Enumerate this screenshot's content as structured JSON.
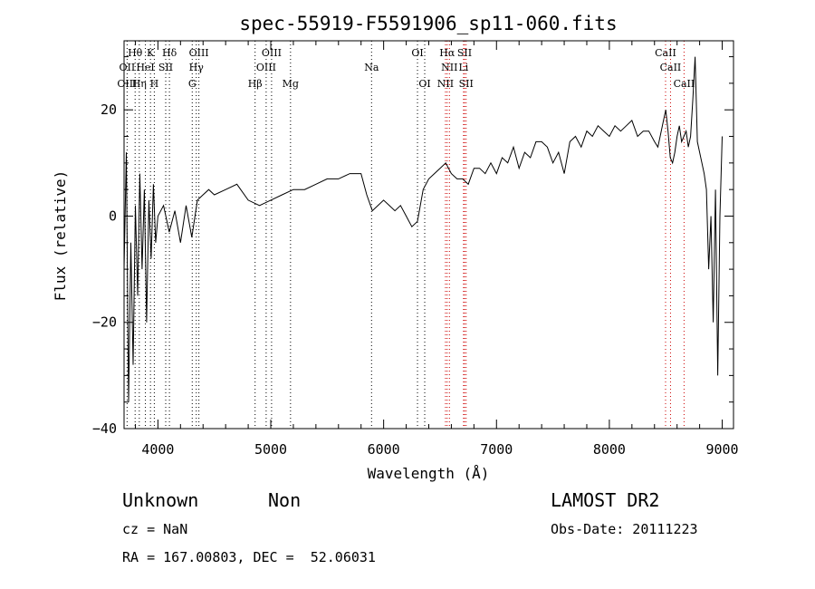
{
  "chart_data": {
    "type": "line",
    "title": "spec-55919-F5591906_sp11-060.fits",
    "xlabel": "Wavelength (Å)",
    "ylabel": "Flux (relative)",
    "xlim": [
      3700,
      9100
    ],
    "ylim": [
      -40,
      33
    ],
    "xticks": [
      4000,
      5000,
      6000,
      7000,
      8000,
      9000
    ],
    "yticks": [
      -40,
      -20,
      0,
      20
    ],
    "series": [
      {
        "x": [
          3700,
          3720,
          3740,
          3760,
          3780,
          3800,
          3820,
          3840,
          3860,
          3880,
          3900,
          3920,
          3940,
          3960,
          3980,
          4000,
          4050,
          4100,
          4150,
          4200,
          4250,
          4300,
          4350,
          4400,
          4450,
          4500,
          4600,
          4700,
          4800,
          4900,
          5000,
          5100,
          5200,
          5300,
          5400,
          5500,
          5600,
          5700,
          5800,
          5850,
          5900,
          5950,
          6000,
          6050,
          6100,
          6150,
          6200,
          6250,
          6300,
          6350,
          6400,
          6450,
          6500,
          6550,
          6600,
          6650,
          6700,
          6750,
          6800,
          6850,
          6900,
          6950,
          7000,
          7050,
          7100,
          7150,
          7200,
          7250,
          7300,
          7350,
          7400,
          7450,
          7500,
          7550,
          7600,
          7650,
          7700,
          7750,
          7800,
          7850,
          7900,
          7950,
          8000,
          8050,
          8100,
          8150,
          8200,
          8250,
          8300,
          8350,
          8400,
          8430,
          8450,
          8480,
          8500,
          8520,
          8540,
          8560,
          8580,
          8600,
          8620,
          8640,
          8660,
          8680,
          8700,
          8720,
          8740,
          8760,
          8780,
          8800,
          8820,
          8840,
          8860,
          8880,
          8900,
          8920,
          8940,
          8960,
          8980,
          9000
        ],
        "y": [
          -10,
          12,
          -35,
          -5,
          -28,
          2,
          -15,
          8,
          -10,
          5,
          -20,
          3,
          -8,
          6,
          -5,
          0,
          2,
          -3,
          1,
          -5,
          2,
          -4,
          3,
          4,
          5,
          4,
          5,
          6,
          3,
          2,
          3,
          4,
          5,
          5,
          6,
          7,
          7,
          8,
          8,
          4,
          1,
          2,
          3,
          2,
          1,
          2,
          0,
          -2,
          -1,
          5,
          7,
          8,
          9,
          10,
          8,
          7,
          7,
          6,
          9,
          9,
          8,
          10,
          8,
          11,
          10,
          13,
          9,
          12,
          11,
          14,
          14,
          13,
          10,
          12,
          8,
          14,
          15,
          13,
          16,
          15,
          17,
          16,
          15,
          17,
          16,
          17,
          18,
          15,
          16,
          16,
          14,
          13,
          15,
          18,
          20,
          16,
          11,
          10,
          12,
          15,
          17,
          14,
          15,
          16,
          13,
          15,
          22,
          30,
          14,
          12,
          10,
          8,
          5,
          -10,
          0,
          -20,
          5,
          -30,
          0,
          15
        ]
      }
    ],
    "line_labels": [
      {
        "text": "Hθ",
        "wl": 3798,
        "row": 1
      },
      {
        "text": "K",
        "wl": 3934,
        "row": 1
      },
      {
        "text": "Hδ",
        "wl": 4102,
        "row": 1
      },
      {
        "text": "OIII",
        "wl": 4363,
        "row": 1
      },
      {
        "text": "OIII",
        "wl": 5007,
        "row": 1
      },
      {
        "text": "OI",
        "wl": 6300,
        "row": 1
      },
      {
        "text": "Hα",
        "wl": 6563,
        "row": 1
      },
      {
        "text": "SII",
        "wl": 6717,
        "row": 1
      },
      {
        "text": "CaII",
        "wl": 8498,
        "row": 1
      },
      {
        "text": "OII",
        "wl": 3727,
        "row": 2
      },
      {
        "text": "HeI",
        "wl": 3889,
        "row": 2
      },
      {
        "text": "SII",
        "wl": 4069,
        "row": 2
      },
      {
        "text": "Hγ",
        "wl": 4340,
        "row": 2
      },
      {
        "text": "OIII",
        "wl": 4959,
        "row": 2
      },
      {
        "text": "Na",
        "wl": 5893,
        "row": 2
      },
      {
        "text": "NII",
        "wl": 6583,
        "row": 2
      },
      {
        "text": "Li",
        "wl": 6708,
        "row": 2
      },
      {
        "text": "CaII",
        "wl": 8542,
        "row": 2
      },
      {
        "text": "OIII",
        "wl": 3727,
        "row": 3
      },
      {
        "text": "Hη",
        "wl": 3835,
        "row": 3
      },
      {
        "text": "H",
        "wl": 3968,
        "row": 3
      },
      {
        "text": "G",
        "wl": 4304,
        "row": 3
      },
      {
        "text": "Hβ",
        "wl": 4861,
        "row": 3
      },
      {
        "text": "Mg",
        "wl": 5175,
        "row": 3
      },
      {
        "text": "OI",
        "wl": 6364,
        "row": 3
      },
      {
        "text": "NII",
        "wl": 6548,
        "row": 3
      },
      {
        "text": "SII",
        "wl": 6731,
        "row": 3
      },
      {
        "text": "CaII",
        "wl": 8662,
        "row": 3
      }
    ],
    "black_lines": [
      3727,
      3798,
      3835,
      3889,
      3934,
      3968,
      4069,
      4102,
      4304,
      4340,
      4363,
      4861,
      4959,
      5007,
      5175,
      5893,
      6300,
      6364
    ],
    "red_lines": [
      6548,
      6563,
      6583,
      6708,
      6717,
      6731,
      8498,
      8542,
      8662
    ],
    "colors": {
      "spectrum": "#000000",
      "emission_marker": "#cc0000",
      "absorption_marker": "#000000"
    }
  },
  "info": {
    "object_class": "Unknown",
    "subclass": "Non",
    "survey": "LAMOST DR2",
    "cz": "cz = NaN",
    "obs_date": "Obs-Date: 20111223",
    "coords": "RA = 167.00803, DEC =  52.06031"
  }
}
